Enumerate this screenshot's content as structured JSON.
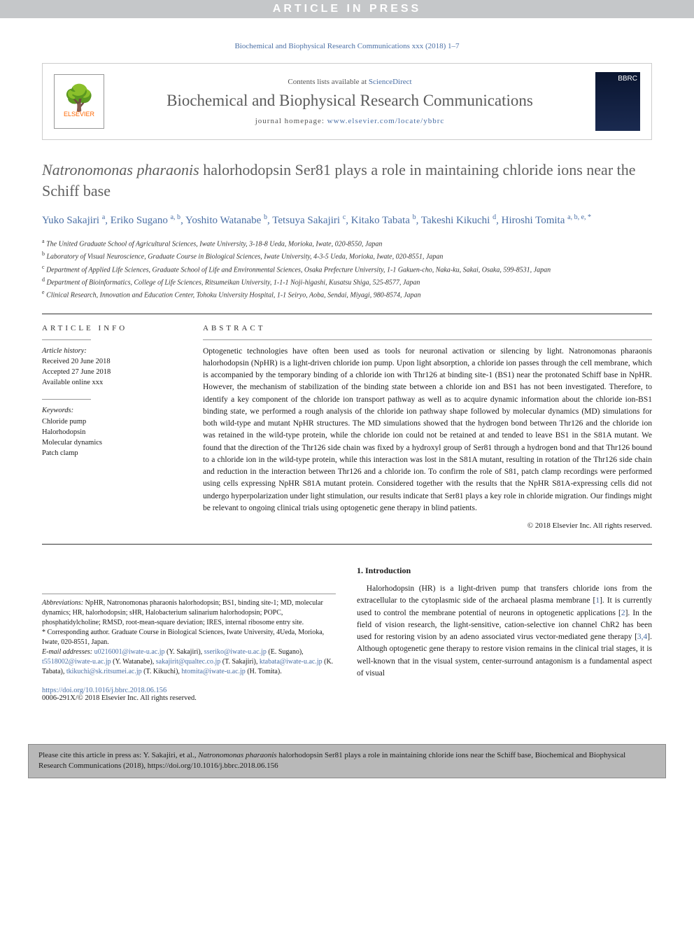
{
  "banner": {
    "text": "ARTICLE IN PRESS"
  },
  "journal_ref": "Biochemical and Biophysical Research Communications xxx (2018) 1–7",
  "header": {
    "contents_prefix": "Contents lists available at ",
    "contents_link": "ScienceDirect",
    "journal_title": "Biochemical and Biophysical Research Communications",
    "homepage_prefix": "journal homepage: ",
    "homepage_link": "www.elsevier.com/locate/ybbrc",
    "publisher": "ELSEVIER",
    "cover_label": "BBRC"
  },
  "title": {
    "italic": "Natronomonas pharaonis",
    "rest": " halorhodopsin Ser81 plays a role in maintaining chloride ions near the Schiff base"
  },
  "authors": [
    {
      "name": "Yuko Sakajiri",
      "sup": "a"
    },
    {
      "name": "Eriko Sugano",
      "sup": "a, b"
    },
    {
      "name": "Yoshito Watanabe",
      "sup": "b"
    },
    {
      "name": "Tetsuya Sakajiri",
      "sup": "c"
    },
    {
      "name": "Kitako Tabata",
      "sup": "b"
    },
    {
      "name": "Takeshi Kikuchi",
      "sup": "d"
    },
    {
      "name": "Hiroshi Tomita",
      "sup": "a, b, e, *"
    }
  ],
  "affiliations": [
    {
      "sup": "a",
      "text": "The United Graduate School of Agricultural Sciences, Iwate University, 3-18-8 Ueda, Morioka, Iwate, 020-8550, Japan"
    },
    {
      "sup": "b",
      "text": "Laboratory of Visual Neuroscience, Graduate Course in Biological Sciences, Iwate University, 4-3-5 Ueda, Morioka, Iwate, 020-8551, Japan"
    },
    {
      "sup": "c",
      "text": "Department of Applied Life Sciences, Graduate School of Life and Environmental Sciences, Osaka Prefecture University, 1-1 Gakuen-cho, Naka-ku, Sakai, Osaka, 599-8531, Japan"
    },
    {
      "sup": "d",
      "text": "Department of Bioinformatics, College of Life Sciences, Ritsumeikan University, 1-1-1 Noji-higashi, Kusatsu Shiga, 525-8577, Japan"
    },
    {
      "sup": "e",
      "text": "Clinical Research, Innovation and Education Center, Tohoku University Hospital, 1-1 Seiryo, Aoba, Sendai, Miyagi, 980-8574, Japan"
    }
  ],
  "article_info": {
    "header": "ARTICLE INFO",
    "history_label": "Article history:",
    "received": "Received 20 June 2018",
    "accepted": "Accepted 27 June 2018",
    "available": "Available online xxx",
    "keywords_label": "Keywords:",
    "keywords": [
      "Chloride pump",
      "Halorhodopsin",
      "Molecular dynamics",
      "Patch clamp"
    ]
  },
  "abstract": {
    "header": "ABSTRACT",
    "text": "Optogenetic technologies have often been used as tools for neuronal activation or silencing by light. Natronomonas pharaonis halorhodopsin (NpHR) is a light-driven chloride ion pump. Upon light absorption, a chloride ion passes through the cell membrane, which is accompanied by the temporary binding of a chloride ion with Thr126 at binding site-1 (BS1) near the protonated Schiff base in NpHR. However, the mechanism of stabilization of the binding state between a chloride ion and BS1 has not been investigated. Therefore, to identify a key component of the chloride ion transport pathway as well as to acquire dynamic information about the chloride ion-BS1 binding state, we performed a rough analysis of the chloride ion pathway shape followed by molecular dynamics (MD) simulations for both wild-type and mutant NpHR structures. The MD simulations showed that the hydrogen bond between Thr126 and the chloride ion was retained in the wild-type protein, while the chloride ion could not be retained at and tended to leave BS1 in the S81A mutant. We found that the direction of the Thr126 side chain was fixed by a hydroxyl group of Ser81 through a hydrogen bond and that Thr126 bound to a chloride ion in the wild-type protein, while this interaction was lost in the S81A mutant, resulting in rotation of the Thr126 side chain and reduction in the interaction between Thr126 and a chloride ion. To confirm the role of S81, patch clamp recordings were performed using cells expressing NpHR S81A mutant protein. Considered together with the results that the NpHR S81A-expressing cells did not undergo hyperpolarization under light stimulation, our results indicate that Ser81 plays a key role in chloride migration. Our findings might be relevant to ongoing clinical trials using optogenetic gene therapy in blind patients.",
    "copyright": "© 2018 Elsevier Inc. All rights reserved."
  },
  "intro": {
    "heading": "1. Introduction",
    "text": "Halorhodopsin (HR) is a light-driven pump that transfers chloride ions from the extracellular to the cytoplasmic side of the archaeal plasma membrane [1]. It is currently used to control the membrane potential of neurons in optogenetic applications [2]. In the field of vision research, the light-sensitive, cation-selective ion channel ChR2 has been used for restoring vision by an adeno associated virus vector-mediated gene therapy [3,4]. Although optogenetic gene therapy to restore vision remains in the clinical trial stages, it is well-known that in the visual system, center-surround antagonism is a fundamental aspect of visual"
  },
  "footnotes": {
    "abbrev_label": "Abbreviations:",
    "abbrev_text": " NpHR, Natronomonas pharaonis halorhodopsin; BS1, binding site-1; MD, molecular dynamics; HR, halorhodopsin; sHR, Halobacterium salinarium halorhodopsin; POPC, phosphatidylcholine; RMSD, root-mean-square deviation; IRES, internal ribosome entry site.",
    "corr_label": "* Corresponding author.",
    "corr_text": " Graduate Course in Biological Sciences, Iwate University, 4Ueda, Morioka, Iwate, 020-8551, Japan.",
    "email_label": "E-mail addresses:",
    "emails": [
      {
        "addr": "u0216001@iwate-u.ac.jp",
        "who": "(Y. Sakajiri)"
      },
      {
        "addr": "sseriko@iwate-u.ac.jp",
        "who": "(E. Sugano)"
      },
      {
        "addr": "t5518002@iwate-u.ac.jp",
        "who": "(Y. Watanabe)"
      },
      {
        "addr": "sakajirit@qualtec.co.jp",
        "who": "(T. Sakajiri)"
      },
      {
        "addr": "ktabata@iwate-u.ac.jp",
        "who": "(K. Tabata)"
      },
      {
        "addr": "tkikuchi@sk.ritsumei.ac.jp",
        "who": "(T. Kikuchi)"
      },
      {
        "addr": "htomita@iwate-u.ac.jp",
        "who": "(H. Tomita)."
      }
    ]
  },
  "doi": {
    "link": "https://doi.org/10.1016/j.bbrc.2018.06.156",
    "issn_line": "0006-291X/© 2018 Elsevier Inc. All rights reserved."
  },
  "cite_box": {
    "prefix": "Please cite this article in press as: Y. Sakajiri, et al., ",
    "italic": "Natronomonas pharaonis",
    "rest": " halorhodopsin Ser81 plays a role in maintaining chloride ions near the Schiff base, Biochemical and Biophysical Research Communications (2018), https://doi.org/10.1016/j.bbrc.2018.06.156"
  },
  "colors": {
    "link": "#4a6fa5",
    "banner_bg": "#c5c7c9",
    "citebox_bg": "#b8b8b8",
    "title_gray": "#606060"
  }
}
